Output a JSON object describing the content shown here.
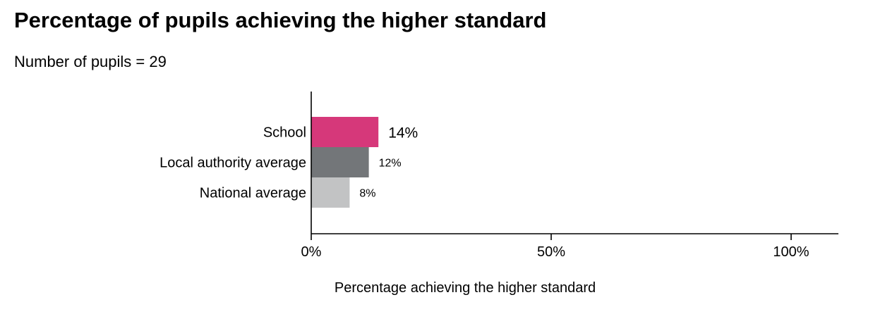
{
  "title": "Percentage of pupils achieving the higher standard",
  "subtitle": "Number of pupils = 29",
  "chart_data": {
    "type": "bar",
    "orientation": "horizontal",
    "categories": [
      "School",
      "Local authority average",
      "National average"
    ],
    "values": [
      14,
      12,
      8
    ],
    "value_labels": [
      "14%",
      "12%",
      "8%"
    ],
    "colors": [
      "#d6387a",
      "#737679",
      "#c2c3c4"
    ],
    "xlabel": "Percentage achieving the higher standard",
    "ylabel": "",
    "xlim": [
      0,
      110
    ],
    "xticks": [
      0,
      50,
      100
    ],
    "xtick_labels": [
      "0%",
      "50%",
      "100%"
    ],
    "grid": false,
    "legend": "none"
  }
}
